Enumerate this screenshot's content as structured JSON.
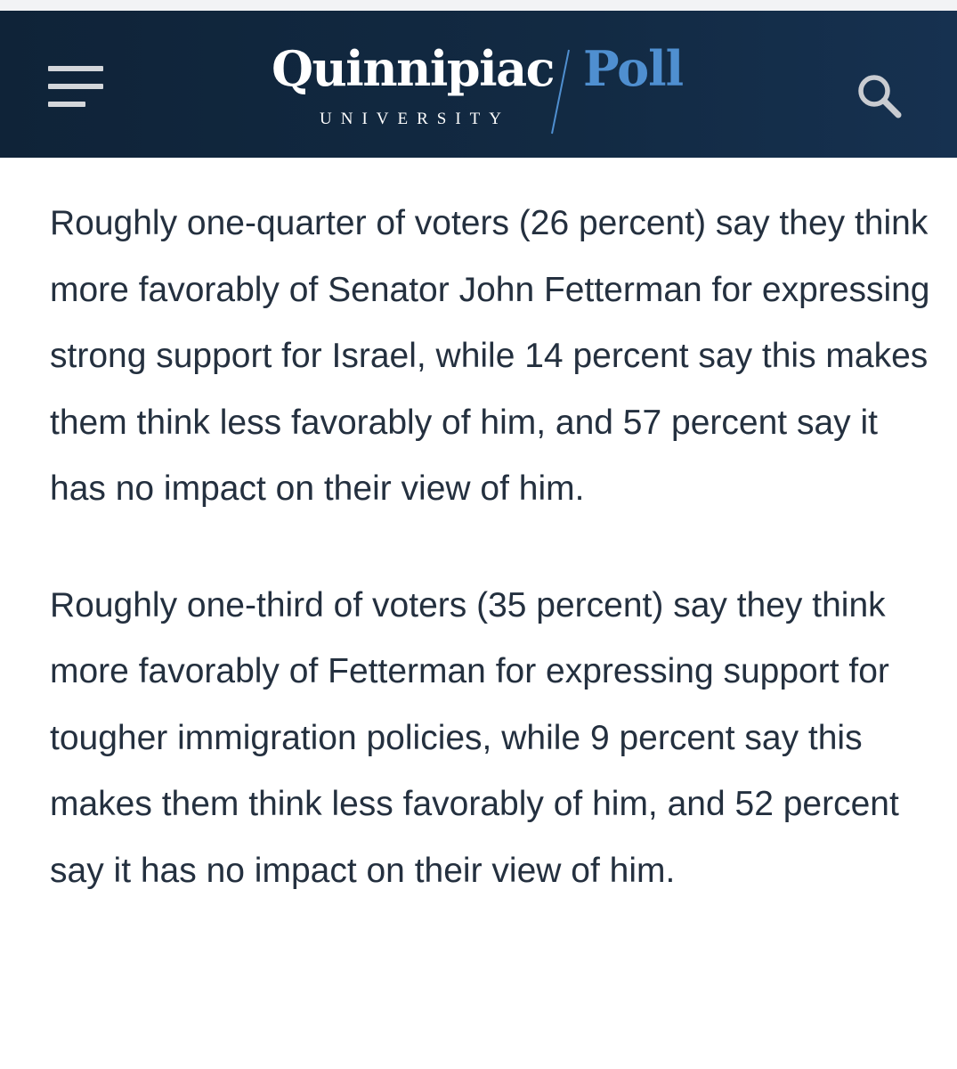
{
  "header": {
    "menu_icon": "hamburger-menu-icon",
    "logo": {
      "name": "Quinnipiac",
      "sub": "UNIVERSITY",
      "poll": "Poll",
      "poll_color": "#4f8fd0"
    },
    "search_icon": "search-icon",
    "background": "#0f2338"
  },
  "article": {
    "paragraphs": [
      "Roughly one-quarter of voters (26 percent) say they think more favorably of Senator John Fetterman for expressing strong support for Israel, while 14 percent say this makes them think less favorably of him, and 57 percent say it has no impact on their view of him.",
      "Roughly one-third of voters (35 percent) say they think more favorably of Fetterman for expressing support for tougher immigration policies, while 9 percent say this makes them think less favorably of him, and 52 percent say it has no impact on their view of him."
    ],
    "text_color": "#24303f"
  }
}
